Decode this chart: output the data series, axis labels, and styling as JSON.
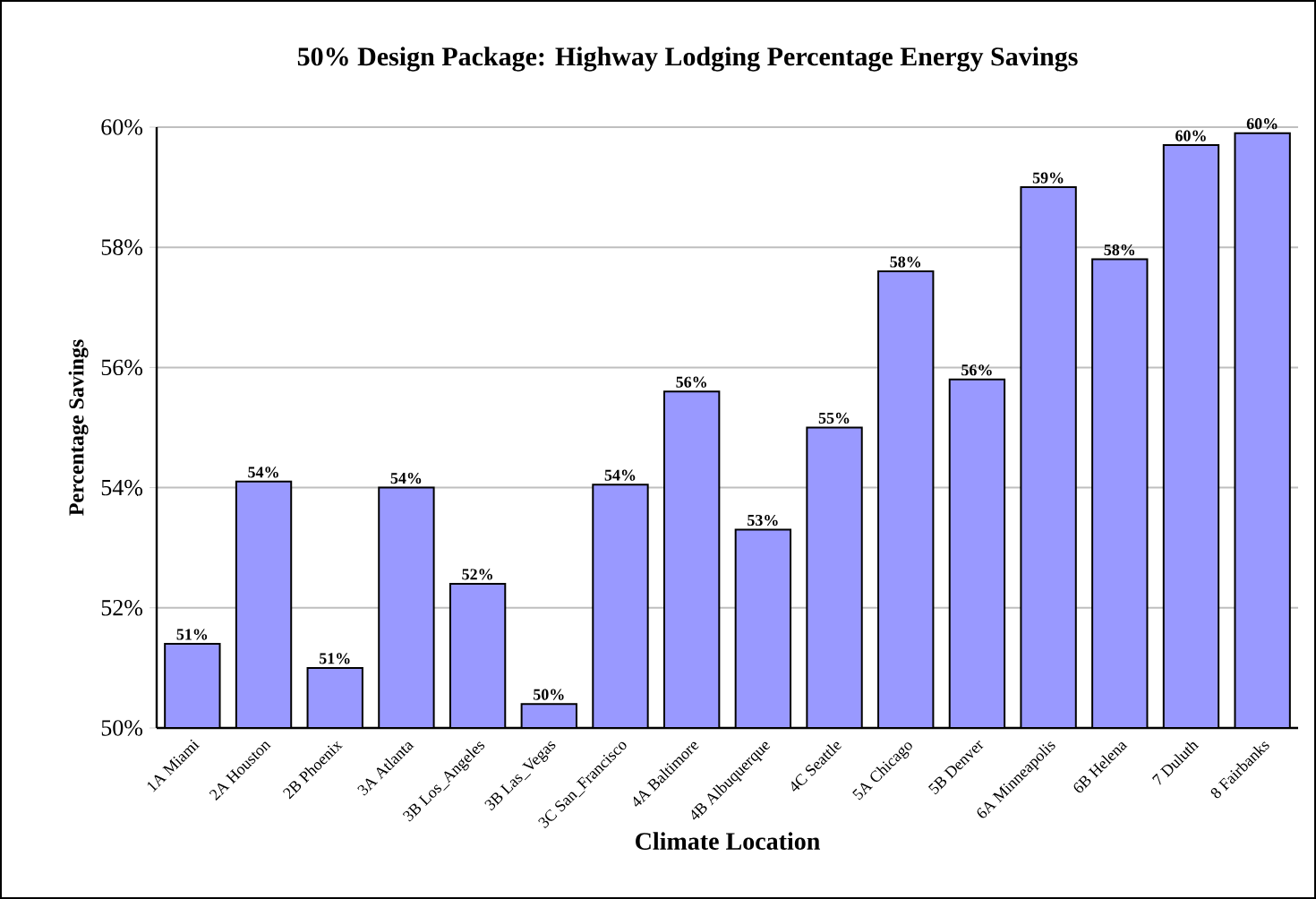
{
  "chart_data": {
    "type": "bar",
    "title": "50% Design Package: Highway Lodging  Percentage Energy Savings",
    "xlabel": "Climate Location",
    "ylabel": "Percentage Savings",
    "categories": [
      "1A Miami",
      "2A Houston",
      "2B Phoenix",
      "3A Atlanta",
      "3B Los_Angeles",
      "3B Las_Vegas",
      "3C San_Francisco",
      "4A Baltimore",
      "4B Albuquerque",
      "4C Seattle",
      "5A Chicago",
      "5B Denver",
      "6A Minneapolis",
      "6B Helena",
      "7 Duluth",
      "8 Fairbanks"
    ],
    "values": [
      51.4,
      54.1,
      51.0,
      54.0,
      52.4,
      50.4,
      54.05,
      55.6,
      53.3,
      55.0,
      57.6,
      55.8,
      59.0,
      57.8,
      59.7,
      59.9
    ],
    "value_labels": [
      "51%",
      "54%",
      "51%",
      "54%",
      "52%",
      "50%",
      "54%",
      "56%",
      "53%",
      "55%",
      "58%",
      "56%",
      "59%",
      "58%",
      "60%",
      "60%"
    ],
    "color": "#9999ff",
    "ylim": [
      50,
      60
    ],
    "yticks": [
      {
        "value": 50,
        "label": "50%"
      },
      {
        "value": 52,
        "label": "52%"
      },
      {
        "value": 54,
        "label": "54%"
      },
      {
        "value": 56,
        "label": "56%"
      },
      {
        "value": 58,
        "label": "58%"
      },
      {
        "value": 60,
        "label": "60%"
      }
    ],
    "grid": "y"
  }
}
